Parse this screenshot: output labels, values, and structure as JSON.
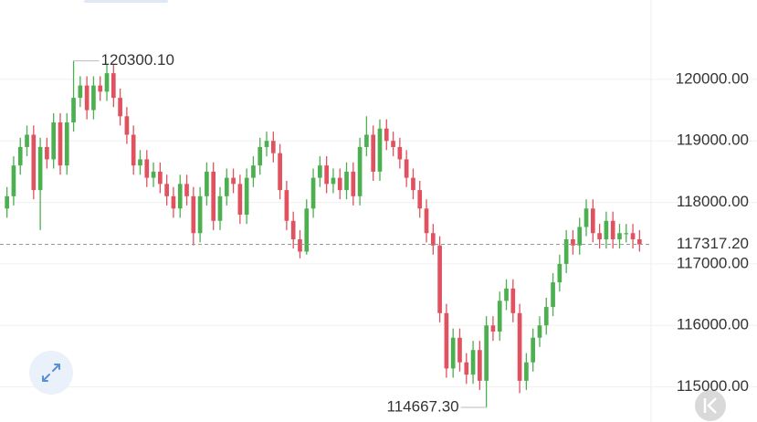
{
  "chart_data": {
    "type": "candlestick",
    "open": [
      117900,
      118100,
      118600,
      118900,
      119100,
      118200,
      118900,
      118700,
      119300,
      118600,
      119300,
      119700,
      119900,
      119500,
      119900,
      119800,
      120100,
      119700,
      119400,
      119100,
      118600,
      118700,
      118400,
      118500,
      118300,
      118100,
      117900,
      118300,
      118100,
      117500,
      118100,
      118500,
      117700,
      118100,
      118400,
      118300,
      117800,
      118400,
      118600,
      118900,
      119000,
      118800,
      118200,
      117700,
      117400,
      117200,
      117900,
      118400,
      118600,
      118300,
      118400,
      118200,
      118500,
      118100,
      118900,
      119100,
      118500,
      119200,
      119000,
      118900,
      118700,
      118400,
      118200,
      117900,
      117500,
      117300,
      116200,
      115300,
      115800,
      115400,
      115200,
      115600,
      115100,
      116000,
      115900,
      116400,
      116600,
      116200,
      115100,
      115400,
      115800,
      116000,
      116300,
      116700,
      117000,
      117400,
      117300,
      117600,
      117900,
      117500,
      117400,
      117700,
      117400,
      117500,
      117500,
      117400
    ],
    "high": [
      118250,
      118750,
      119050,
      119250,
      119250,
      119050,
      119050,
      119450,
      119450,
      119450,
      120300.1,
      120050,
      120050,
      120050,
      120050,
      120250,
      120250,
      119850,
      119550,
      119250,
      118850,
      118850,
      118650,
      118650,
      118450,
      118250,
      118450,
      118450,
      118250,
      118250,
      118650,
      118650,
      118250,
      118550,
      118550,
      118450,
      118550,
      118750,
      119050,
      119150,
      119150,
      118950,
      118350,
      117850,
      117550,
      118050,
      118550,
      118750,
      118750,
      118550,
      118550,
      118650,
      118650,
      119050,
      119400,
      119250,
      119350,
      119350,
      119150,
      119050,
      118850,
      118550,
      118350,
      118050,
      117650,
      117450,
      116350,
      115950,
      115950,
      115550,
      115750,
      115750,
      116150,
      116150,
      116550,
      116750,
      116750,
      116350,
      115550,
      115950,
      116150,
      116450,
      116850,
      117150,
      117550,
      117550,
      117750,
      118050,
      118050,
      117650,
      117850,
      117850,
      117650,
      117650,
      117650,
      117550
    ],
    "low": [
      117750,
      117950,
      118450,
      118750,
      118050,
      117550,
      118550,
      118550,
      118450,
      118450,
      119150,
      119550,
      119350,
      119350,
      119650,
      119650,
      119550,
      119250,
      118950,
      118450,
      118450,
      118250,
      118250,
      118150,
      117950,
      117750,
      117750,
      117950,
      117300,
      117350,
      117950,
      117550,
      117550,
      117950,
      118150,
      117650,
      117650,
      118250,
      118450,
      118750,
      118650,
      118050,
      117550,
      117250,
      117090,
      117150,
      117750,
      118250,
      118150,
      118150,
      118050,
      118050,
      117950,
      117950,
      118750,
      118350,
      118350,
      118850,
      118750,
      118550,
      118250,
      118050,
      117750,
      117350,
      117150,
      116050,
      115150,
      115150,
      115250,
      115050,
      115050,
      114950,
      114667.3,
      115750,
      115750,
      116250,
      116050,
      114900,
      114950,
      115250,
      115650,
      115850,
      116150,
      116550,
      116850,
      117150,
      117150,
      117450,
      117350,
      117250,
      117250,
      117250,
      117250,
      117350,
      117250,
      117200
    ],
    "close": [
      118100,
      118600,
      118900,
      119100,
      118200,
      118900,
      118700,
      119300,
      118600,
      119300,
      119700,
      119900,
      119500,
      119900,
      119800,
      120100,
      119700,
      119400,
      119100,
      118600,
      118700,
      118400,
      118500,
      118300,
      118100,
      117900,
      118300,
      118100,
      117500,
      118100,
      118500,
      117700,
      118100,
      118400,
      118300,
      117800,
      118400,
      118600,
      118900,
      119000,
      118800,
      118200,
      117700,
      117400,
      117200,
      117900,
      118400,
      118600,
      118300,
      118400,
      118200,
      118500,
      118100,
      118900,
      119100,
      118500,
      119200,
      119000,
      118900,
      118700,
      118400,
      118200,
      117900,
      117500,
      117300,
      116200,
      115300,
      115800,
      115400,
      115200,
      115600,
      115100,
      116000,
      115900,
      116400,
      116600,
      116200,
      115100,
      115400,
      115800,
      116000,
      116300,
      116700,
      117000,
      117400,
      117300,
      117600,
      117900,
      117500,
      117400,
      117700,
      117400,
      117500,
      117500,
      117400,
      117317.2
    ],
    "up_color": "#4caf50",
    "down_color": "#e0525f",
    "ylim": [
      114430,
      121290
    ],
    "yticks": [
      {
        "value": 115000,
        "label": "115000.00"
      },
      {
        "value": 116000,
        "label": "116000.00"
      },
      {
        "value": 117000,
        "label": "117000.00"
      },
      {
        "value": 118000,
        "label": "118000.00"
      },
      {
        "value": 119000,
        "label": "119000.00"
      },
      {
        "value": 120000,
        "label": "120000.00"
      }
    ],
    "grid": true,
    "max_marker": {
      "value": 120300.1,
      "label": "120300.10"
    },
    "min_marker": {
      "value": 114667.3,
      "label": "114667.30"
    },
    "last_price": {
      "value": 117317.2,
      "label": "117317.20"
    }
  }
}
